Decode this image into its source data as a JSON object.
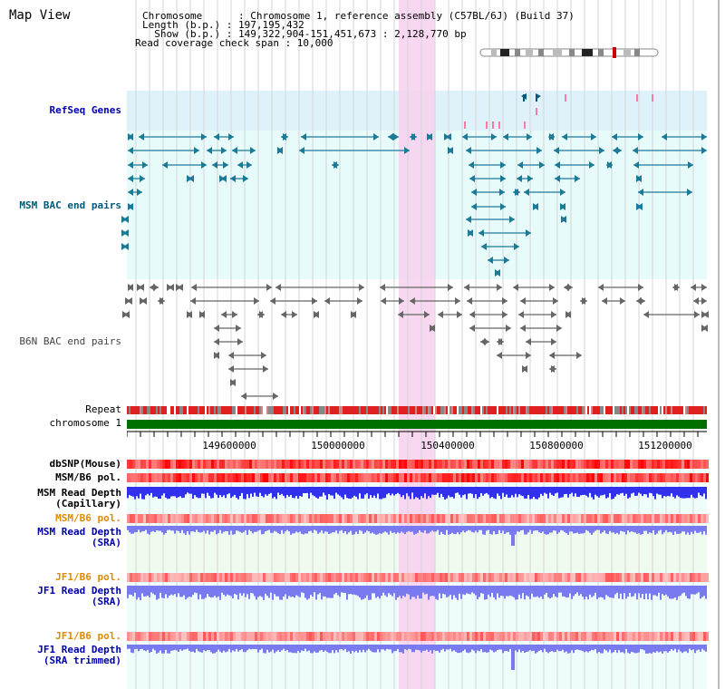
{
  "header": {
    "title": "Map View",
    "lines": [
      "Chromosome      : Chromosome 1, reference assembly (C57BL/6J) (Build 37)",
      "Length (b.p.) : 197,195,432",
      "  Show (b.p.) : 149,322,904-151,451,673 : 2,128,770 bp",
      "Read coverage check span : 10,000"
    ]
  },
  "tracks": {
    "refseq": "RefSeq Genes",
    "msm_bac": "MSM BAC end pairs",
    "b6n_bac": "B6N BAC end pairs",
    "repeat": "Repeat",
    "chromosome": "chromosome 1",
    "dbsnp": "dbSNP(Mouse)",
    "msm_b6_pol": "MSM/B6 pol.",
    "msm_depth_cap_1": "MSM Read Depth",
    "msm_depth_cap_2": "(Capillary)",
    "msm_b6_pol2": "MSM/B6 pol.",
    "msm_depth_sra_1": "MSM Read Depth",
    "msm_depth_sra_2": "(SRA)",
    "jf1_b6_pol": "JF1/B6 pol.",
    "jf1_depth_sra_1": "JF1 Read Depth",
    "jf1_depth_sra_2": "(SRA)",
    "jf1_b6_pol2": "JF1/B6 pol.",
    "jf1_depth_trim_1": "JF1 Read Depth",
    "jf1_depth_trim_2": "(SRA trimmed)"
  },
  "axis": {
    "ticks": [
      "149600000",
      "150000000",
      "150400000",
      "150800000",
      "151200000"
    ]
  },
  "colors": {
    "refseq_bg": "#dff2fb",
    "bac_bg": "#e8fbfb",
    "highlight": "#f7d3f0",
    "chromosome_bar": "#007000",
    "msm_depth": "#3030ee",
    "sra_depth": "#7a7af0"
  }
}
